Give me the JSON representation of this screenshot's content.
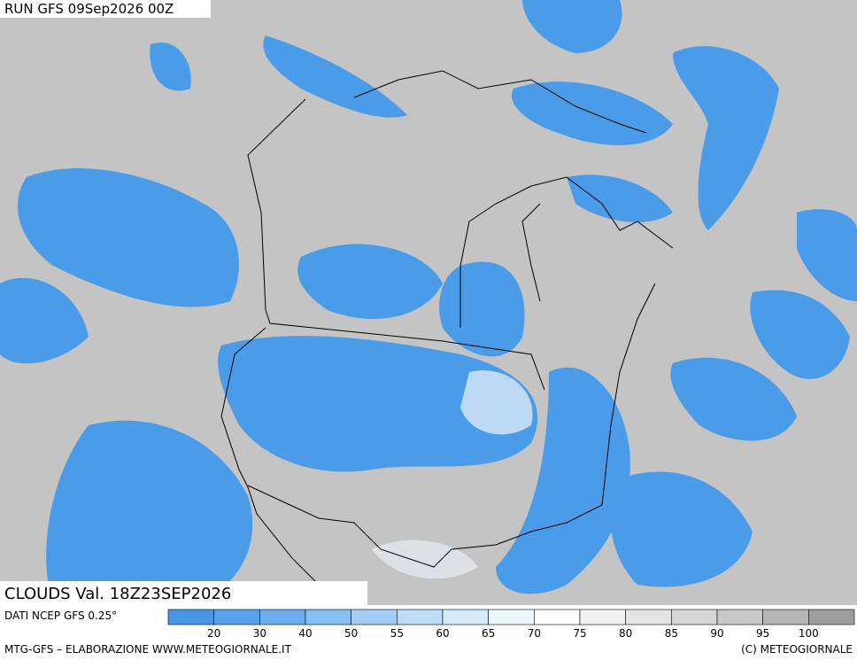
{
  "header": {
    "run": "RUN GFS 09Sep2026 00Z"
  },
  "map": {
    "title": "CLOUDS Val. 18Z23SEP2026"
  },
  "legend": {
    "source": "DATI NCEP GFS 0.25°",
    "ticks": [
      20,
      30,
      40,
      50,
      55,
      60,
      65,
      70,
      75,
      80,
      85,
      90,
      95,
      100
    ],
    "colors": [
      "#4696e6",
      "#56a2ec",
      "#6aaef0",
      "#86bff3",
      "#a2cef6",
      "#bcdcf8",
      "#d4eafa",
      "#eaf8fc",
      "#ffffff",
      "#f2f2f2",
      "#e4e4e4",
      "#d6d6d6",
      "#c8c8c8",
      "#b6b6b6",
      "#9e9e9e"
    ]
  },
  "footer": {
    "left": "MTG-GFS – ELABORAZIONE WWW.METEOGIORNALE.IT",
    "right": "(C) METEOGIORNALE"
  }
}
